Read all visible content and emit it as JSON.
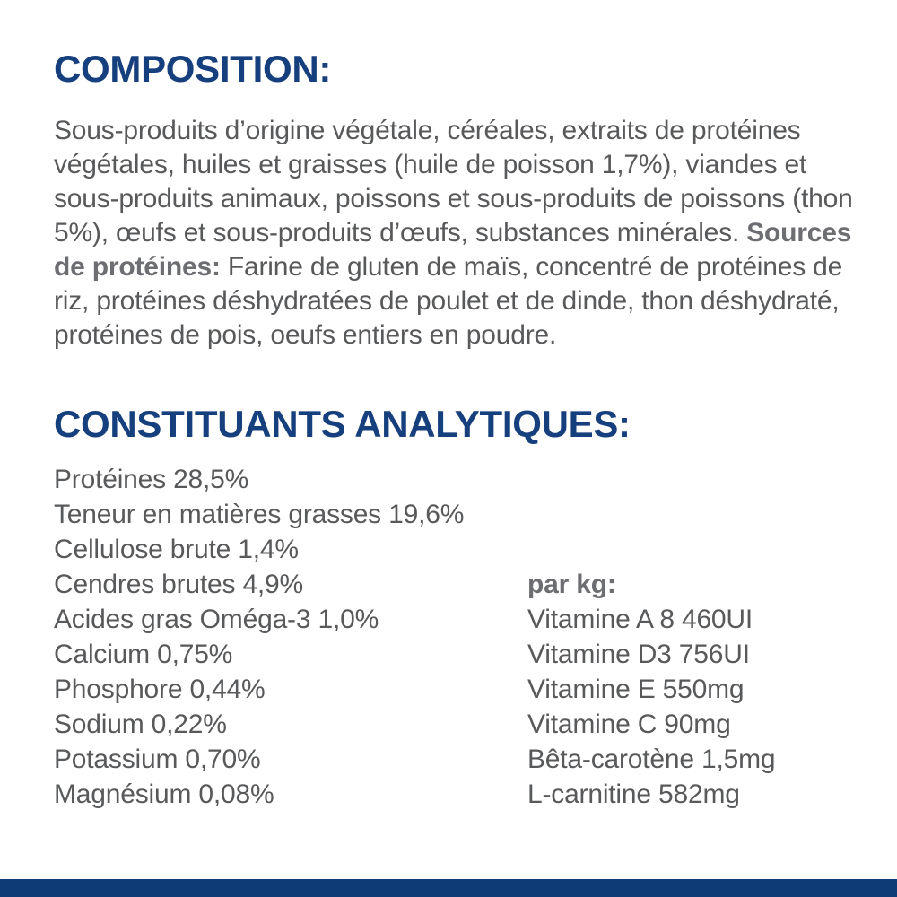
{
  "colors": {
    "heading_navy": "#163F7D",
    "body_gray": "#58595B",
    "bold_gray": "#6D6E71",
    "bottom_bar_navy": "#0E3A76",
    "background": "#FFFFFF"
  },
  "composition": {
    "heading": "COMPOSITION:",
    "body_intro": "Sous-produits d’origine végétale, céréales, extraits de protéines végétales, huiles et graisses (huile de poisson 1,7%), viandes et sous-produits animaux, poissons et sous-produits de poissons (thon 5%), œufs et sous-produits d’œufs, substances minérales.",
    "sources_label": "Sources de protéines:",
    "sources_text": "Farine de gluten de maïs, concentré de protéines de riz, protéines déshydratées de poulet et de dinde, thon déshydraté, protéines de pois, oeufs entiers en poudre."
  },
  "analytical": {
    "heading": "CONSTITUANTS ANALYTIQUES:",
    "left": [
      "Protéines 28,5%",
      "Teneur en matières grasses 19,6%",
      "Cellulose brute 1,4%",
      "Cendres brutes 4,9%",
      "Acides gras Oméga-3 1,0%",
      "Calcium 0,75%",
      "Phosphore 0,44%",
      "Sodium 0,22%",
      "Potassium 0,70%",
      "Magnésium 0,08%"
    ],
    "right": {
      "header": "par kg:",
      "items": [
        "Vitamine A 8 460UI",
        "Vitamine D3 756UI",
        "Vitamine E 550mg",
        "Vitamine C 90mg",
        "Bêta-carotène 1,5mg",
        "L-carnitine 582mg"
      ]
    }
  }
}
